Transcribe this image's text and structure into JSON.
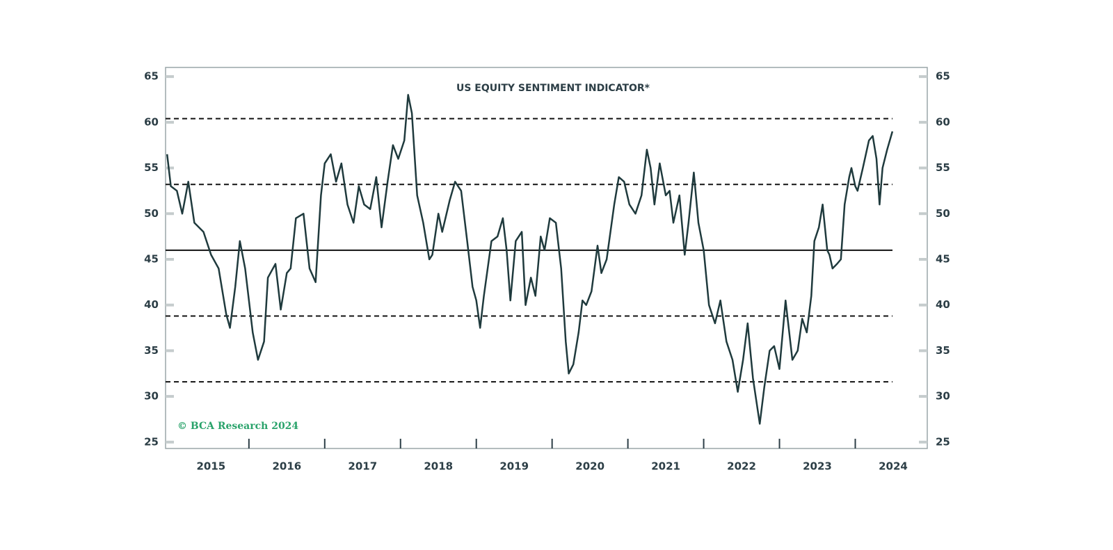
{
  "chart_data": {
    "type": "line",
    "title": "US EQUITY SENTIMENT INDICATOR*",
    "annotation": "© BCA Research 2024",
    "color": "#1f3a3d",
    "x": [
      2014.92,
      2014.97,
      2015.05,
      2015.12,
      2015.2,
      2015.28,
      2015.4,
      2015.5,
      2015.6,
      2015.7,
      2015.75,
      2015.82,
      2015.88,
      2015.95,
      2016.05,
      2016.12,
      2016.2,
      2016.25,
      2016.35,
      2016.42,
      2016.5,
      2016.55,
      2016.62,
      2016.72,
      2016.8,
      2016.88,
      2016.95,
      2017.0,
      2017.08,
      2017.15,
      2017.22,
      2017.3,
      2017.38,
      2017.45,
      2017.52,
      2017.6,
      2017.68,
      2017.75,
      2017.83,
      2017.9,
      2017.97,
      2018.05,
      2018.1,
      2018.15,
      2018.22,
      2018.3,
      2018.38,
      2018.42,
      2018.5,
      2018.55,
      2018.65,
      2018.72,
      2018.8,
      2018.88,
      2018.95,
      2019.0,
      2019.05,
      2019.1,
      2019.2,
      2019.28,
      2019.35,
      2019.4,
      2019.45,
      2019.52,
      2019.6,
      2019.65,
      2019.72,
      2019.78,
      2019.85,
      2019.9,
      2019.97,
      2020.05,
      2020.12,
      2020.18,
      2020.22,
      2020.28,
      2020.35,
      2020.4,
      2020.45,
      2020.52,
      2020.6,
      2020.65,
      2020.72,
      2020.82,
      2020.88,
      2020.95,
      2021.02,
      2021.1,
      2021.18,
      2021.25,
      2021.3,
      2021.35,
      2021.42,
      2021.5,
      2021.55,
      2021.6,
      2021.68,
      2021.75,
      2021.8,
      2021.87,
      2021.93,
      2022.0,
      2022.07,
      2022.15,
      2022.22,
      2022.3,
      2022.38,
      2022.45,
      2022.52,
      2022.58,
      2022.65,
      2022.74,
      2022.8,
      2022.87,
      2022.93,
      2023.0,
      2023.08,
      2023.17,
      2023.24,
      2023.3,
      2023.36,
      2023.42,
      2023.46,
      2023.52,
      2023.57,
      2023.63,
      2023.66,
      2023.7,
      2023.76,
      2023.81,
      2023.86,
      2023.92,
      2023.95,
      2024.0,
      2024.03,
      2024.1,
      2024.18,
      2024.23,
      2024.28,
      2024.32,
      2024.36,
      2024.42,
      2024.49
    ],
    "values": [
      56.5,
      53,
      52.5,
      50,
      53.5,
      49,
      48,
      45.5,
      44,
      39,
      37.5,
      42,
      47,
      44,
      37,
      34,
      36,
      43,
      44.5,
      39.5,
      43.5,
      44,
      49.5,
      50,
      44,
      42.5,
      52,
      55.5,
      56.5,
      53.5,
      55.5,
      51,
      49,
      53,
      51,
      50.5,
      54,
      48.5,
      53.5,
      57.5,
      56,
      58,
      63,
      61,
      52,
      49,
      45,
      45.5,
      50,
      48,
      51.5,
      53.5,
      52.5,
      47,
      42,
      40.5,
      37.5,
      41,
      47,
      47.5,
      49.5,
      46,
      40.5,
      47,
      48,
      40,
      43,
      41,
      47.5,
      46,
      49.5,
      49,
      44,
      36,
      32.5,
      33.5,
      37,
      40.5,
      40,
      41.5,
      46.5,
      43.5,
      45,
      51,
      54,
      53.5,
      51,
      50,
      52,
      57,
      55,
      51,
      55.5,
      52,
      52.5,
      49,
      52,
      45.5,
      49,
      54.5,
      49,
      46,
      40,
      38,
      40.5,
      36,
      34,
      30.5,
      34,
      38,
      32,
      27,
      31,
      35,
      35.5,
      33,
      40.5,
      34,
      35,
      38.5,
      37,
      41,
      47,
      48.5,
      51,
      46,
      45.5,
      44,
      44.5,
      45,
      51,
      54,
      55,
      53,
      52.5,
      55,
      58,
      58.5,
      56,
      51,
      55,
      57,
      59
    ],
    "xlim": [
      2014.9,
      2024.95
    ],
    "ylim": [
      24.3,
      66
    ],
    "y2lim": [
      24.3,
      66
    ],
    "xticks": [
      {
        "value": 2015.5,
        "label": "2015"
      },
      {
        "value": 2016.5,
        "label": "2016"
      },
      {
        "value": 2017.5,
        "label": "2017"
      },
      {
        "value": 2018.5,
        "label": "2018"
      },
      {
        "value": 2019.5,
        "label": "2019"
      },
      {
        "value": 2020.5,
        "label": "2020"
      },
      {
        "value": 2021.5,
        "label": "2021"
      },
      {
        "value": 2022.5,
        "label": "2022"
      },
      {
        "value": 2023.5,
        "label": "2023"
      },
      {
        "value": 2024.5,
        "label": "2024"
      }
    ],
    "xtick_marks": [
      2016,
      2017,
      2018,
      2019,
      2020,
      2021,
      2022,
      2023,
      2024
    ],
    "yticks": [
      25,
      30,
      35,
      40,
      45,
      50,
      55,
      60,
      65
    ],
    "y2ticks": [
      25,
      30,
      35,
      40,
      45,
      50,
      55,
      60,
      65
    ],
    "hlines": [
      {
        "value": 60.4,
        "style": "dashed"
      },
      {
        "value": 53.2,
        "style": "dashed"
      },
      {
        "value": 46,
        "style": "solid"
      },
      {
        "value": 38.8,
        "style": "dashed"
      },
      {
        "value": 31.6,
        "style": "dashed"
      }
    ]
  }
}
